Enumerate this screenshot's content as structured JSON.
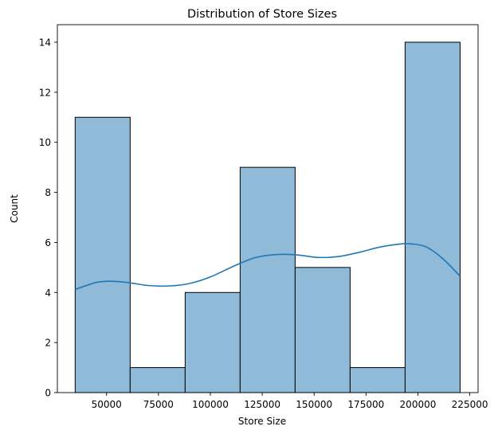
{
  "chart_data": {
    "type": "bar",
    "subtype": "histogram",
    "title": "Distribution of Store Sizes",
    "xlabel": "Store Size",
    "ylabel": "Count",
    "xlim": [
      26300,
      229000
    ],
    "ylim": [
      0,
      14.7
    ],
    "xticks": [
      50000,
      75000,
      100000,
      125000,
      150000,
      175000,
      200000,
      225000
    ],
    "yticks": [
      0,
      2,
      4,
      6,
      8,
      10,
      12,
      14
    ],
    "grid": false,
    "legend": "none",
    "bins": [
      {
        "start": 34875,
        "end": 61369,
        "count": 11
      },
      {
        "start": 61369,
        "end": 87863,
        "count": 1
      },
      {
        "start": 87863,
        "end": 114357,
        "count": 4
      },
      {
        "start": 114357,
        "end": 140851,
        "count": 9
      },
      {
        "start": 140851,
        "end": 167345,
        "count": 5
      },
      {
        "start": 167345,
        "end": 193839,
        "count": 1
      },
      {
        "start": 193839,
        "end": 220333,
        "count": 14
      }
    ],
    "kde": {
      "x": [
        34875,
        45000,
        52000,
        60000,
        70000,
        80000,
        90000,
        100000,
        112000,
        122000,
        132000,
        142000,
        152000,
        162000,
        172000,
        182000,
        192000,
        197000,
        204000,
        212000,
        220333
      ],
      "y": [
        4.12,
        4.4,
        4.45,
        4.4,
        4.28,
        4.26,
        4.36,
        4.62,
        5.08,
        5.4,
        5.52,
        5.5,
        5.4,
        5.44,
        5.61,
        5.82,
        5.94,
        5.94,
        5.82,
        5.35,
        4.65
      ]
    },
    "colors": {
      "bar_fill": "#8fbad8",
      "bar_edge": "#000000",
      "kde_line": "#1f77b4"
    }
  }
}
